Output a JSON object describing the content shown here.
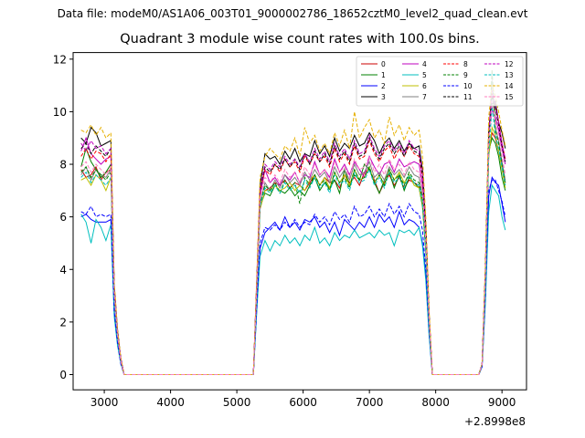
{
  "header": {
    "file_label": "Data file: modeM0/AS1A06_003T01_9000002786_18652cztM0_level2_quad_clean.evt"
  },
  "chart_data": {
    "type": "line",
    "title": "Quadrant 3 module wise count rates with 100.0s bins.",
    "xlabel": "",
    "ylabel": "",
    "x_offset_label": "+2.8998e8",
    "xlim": [
      2530,
      9370
    ],
    "ylim": [
      -0.58,
      12.25
    ],
    "xticks": [
      3000,
      4000,
      5000,
      6000,
      7000,
      8000,
      9000
    ],
    "yticks": [
      0,
      2,
      4,
      6,
      8,
      10,
      12
    ],
    "grid": false,
    "legend_placement": "top-right",
    "x": [
      2650,
      2725,
      2800,
      2875,
      2950,
      3025,
      3100,
      3150,
      3200,
      3250,
      3300,
      3350,
      3450,
      4000,
      4500,
      5000,
      5100,
      5200,
      5250,
      5300,
      5350,
      5425,
      5500,
      5575,
      5650,
      5725,
      5800,
      5875,
      5950,
      6025,
      6100,
      6175,
      6250,
      6325,
      6400,
      6475,
      6550,
      6625,
      6700,
      6775,
      6850,
      6925,
      7000,
      7075,
      7150,
      7225,
      7300,
      7375,
      7450,
      7525,
      7600,
      7675,
      7750,
      7800,
      7850,
      7900,
      7950,
      8000,
      8100,
      8500,
      8650,
      8700,
      8750,
      8800,
      8850,
      8900,
      8950,
      9000,
      9050
    ],
    "series": [
      {
        "name": "0",
        "color": "#cc0000",
        "dash": false,
        "values": [
          7.8,
          7.5,
          7.6,
          7.9,
          7.4,
          7.7,
          7.8,
          3.0,
          1.5,
          0.6,
          0,
          0,
          0,
          0,
          0,
          0,
          0,
          0,
          0,
          3.2,
          6.3,
          7.0,
          7.1,
          7.3,
          7.2,
          7.4,
          7.1,
          7.3,
          7.2,
          7.0,
          7.3,
          7.6,
          7.2,
          7.5,
          7.3,
          7.4,
          7.1,
          7.6,
          7.3,
          7.5,
          7.2,
          7.7,
          7.8,
          7.4,
          6.9,
          7.3,
          7.6,
          7.2,
          7.5,
          7.1,
          7.4,
          7.3,
          7.2,
          6.5,
          4.8,
          2.0,
          0,
          0,
          0,
          0,
          0,
          0.4,
          3.5,
          8.4,
          9.2,
          9.0,
          8.5,
          8.0,
          7.3
        ]
      },
      {
        "name": "1",
        "color": "#008000",
        "dash": false,
        "values": [
          7.9,
          8.6,
          8.1,
          7.8,
          7.5,
          7.7,
          8.0,
          3.0,
          1.4,
          0.5,
          0,
          0,
          0,
          0,
          0,
          0,
          0,
          0,
          0,
          3.2,
          6.4,
          6.9,
          6.8,
          7.2,
          7.0,
          6.9,
          7.1,
          6.8,
          7.0,
          6.8,
          7.2,
          7.5,
          7.0,
          7.3,
          7.1,
          7.4,
          6.9,
          7.8,
          7.2,
          7.6,
          7.4,
          8.0,
          7.8,
          7.3,
          6.9,
          7.4,
          7.7,
          7.1,
          7.6,
          7.0,
          7.5,
          7.3,
          7.1,
          6.4,
          4.7,
          2.0,
          0,
          0,
          0,
          0,
          0,
          0.4,
          3.5,
          8.5,
          9.0,
          8.8,
          8.3,
          7.5,
          7.0
        ]
      },
      {
        "name": "2",
        "color": "#0000ff",
        "dash": false,
        "values": [
          6.0,
          6.1,
          5.9,
          5.8,
          5.8,
          5.8,
          5.9,
          2.3,
          1.2,
          0.5,
          0,
          0,
          0,
          0,
          0,
          0,
          0,
          0,
          0,
          2.5,
          4.8,
          5.4,
          5.6,
          5.8,
          5.5,
          6.0,
          5.6,
          5.8,
          5.5,
          5.9,
          5.8,
          6.0,
          5.6,
          5.8,
          5.4,
          5.8,
          5.3,
          5.9,
          5.7,
          5.5,
          5.8,
          5.6,
          6.0,
          5.6,
          6.1,
          5.8,
          6.0,
          5.6,
          6.2,
          5.7,
          5.9,
          5.8,
          5.6,
          5.0,
          3.8,
          1.6,
          0,
          0,
          0,
          0,
          0,
          0.3,
          2.9,
          6.8,
          7.5,
          7.3,
          7.2,
          6.5,
          5.8
        ]
      },
      {
        "name": "3",
        "color": "#000000",
        "dash": false,
        "values": [
          9.0,
          8.8,
          9.4,
          9.2,
          8.7,
          8.8,
          8.9,
          3.4,
          1.7,
          0.6,
          0,
          0,
          0,
          0,
          0,
          0,
          0,
          0,
          0,
          3.6,
          7.2,
          8.4,
          8.2,
          8.3,
          8.0,
          8.5,
          8.2,
          8.6,
          8.1,
          8.4,
          8.3,
          8.9,
          8.4,
          8.7,
          8.3,
          9.0,
          8.5,
          8.8,
          8.6,
          9.1,
          8.7,
          8.8,
          9.2,
          8.9,
          8.4,
          8.8,
          9.0,
          8.6,
          8.9,
          8.5,
          8.8,
          8.6,
          8.7,
          7.8,
          5.7,
          2.3,
          0,
          0,
          0,
          0,
          0,
          0.4,
          4.0,
          9.3,
          10.3,
          10.4,
          9.6,
          9.2,
          8.6
        ]
      },
      {
        "name": "4",
        "color": "#bf00bf",
        "dash": false,
        "values": [
          8.5,
          9.0,
          8.4,
          8.2,
          8.0,
          8.2,
          8.3,
          3.2,
          1.6,
          0.5,
          0,
          0,
          0,
          0,
          0,
          0,
          0,
          0,
          0,
          3.4,
          6.8,
          7.8,
          7.3,
          7.5,
          7.2,
          7.6,
          7.4,
          7.7,
          7.3,
          7.6,
          7.5,
          8.1,
          7.6,
          7.8,
          7.5,
          8.2,
          7.7,
          8.0,
          7.6,
          8.1,
          7.8,
          7.5,
          8.3,
          7.9,
          7.6,
          8.0,
          8.1,
          7.7,
          8.2,
          7.9,
          8.0,
          8.1,
          8.0,
          7.2,
          5.3,
          2.2,
          0,
          0,
          0,
          0,
          0,
          0.4,
          3.8,
          9.0,
          10.1,
          9.8,
          9.3,
          8.6,
          8.0
        ]
      },
      {
        "name": "5",
        "color": "#00bfbf",
        "dash": false,
        "values": [
          6.1,
          5.8,
          5.0,
          5.9,
          5.6,
          5.1,
          5.7,
          2.2,
          1.1,
          0.4,
          0,
          0,
          0,
          0,
          0,
          0,
          0,
          0,
          0,
          2.4,
          4.5,
          5.1,
          4.7,
          5.1,
          4.9,
          5.3,
          5.0,
          5.2,
          4.9,
          5.3,
          5.1,
          5.6,
          5.0,
          5.2,
          4.9,
          5.4,
          5.1,
          5.3,
          5.2,
          5.5,
          5.2,
          5.3,
          5.4,
          5.2,
          5.5,
          5.3,
          5.4,
          4.9,
          5.5,
          5.4,
          5.5,
          5.3,
          5.6,
          4.9,
          3.6,
          1.5,
          0,
          0,
          0,
          0,
          0,
          0.3,
          2.7,
          6.2,
          7.2,
          7.0,
          6.8,
          6.0,
          5.5
        ]
      },
      {
        "name": "6",
        "color": "#bfbf00",
        "dash": false,
        "values": [
          7.4,
          7.5,
          7.2,
          7.6,
          7.4,
          7.0,
          7.5,
          2.9,
          1.4,
          0.5,
          0,
          0,
          0,
          0,
          0,
          0,
          0,
          0,
          0,
          3.1,
          6.3,
          7.0,
          7.0,
          7.2,
          7.0,
          7.1,
          7.3,
          7.0,
          7.2,
          7.0,
          7.4,
          7.6,
          7.2,
          7.5,
          7.1,
          7.7,
          7.3,
          7.6,
          7.2,
          7.8,
          7.4,
          7.5,
          7.9,
          7.3,
          7.6,
          7.2,
          7.8,
          7.4,
          7.7,
          7.3,
          7.6,
          7.2,
          7.1,
          6.5,
          4.8,
          2.0,
          0,
          0,
          0,
          0,
          0,
          0.4,
          3.5,
          8.3,
          9.4,
          9.1,
          8.5,
          7.8,
          7.1
        ]
      },
      {
        "name": "7",
        "color": "#808080",
        "dash": false,
        "values": [
          7.6,
          7.9,
          7.4,
          7.8,
          7.6,
          7.5,
          7.8,
          3.0,
          1.5,
          0.5,
          0,
          0,
          0,
          0,
          0,
          0,
          0,
          0,
          0,
          3.2,
          6.5,
          7.3,
          7.0,
          7.4,
          7.1,
          7.6,
          7.3,
          7.5,
          7.2,
          7.7,
          7.4,
          7.8,
          7.5,
          7.7,
          7.3,
          7.9,
          7.5,
          7.8,
          7.4,
          8.0,
          7.6,
          7.7,
          8.1,
          7.5,
          7.7,
          7.4,
          7.9,
          7.6,
          7.8,
          7.5,
          7.9,
          7.6,
          7.5,
          6.8,
          5.0,
          2.1,
          0,
          0,
          0,
          0,
          0,
          0.4,
          3.6,
          8.8,
          11.2,
          9.4,
          8.9,
          8.1,
          7.4
        ]
      },
      {
        "name": "8",
        "color": "#ff0000",
        "dash": true,
        "values": [
          8.3,
          8.6,
          8.2,
          8.5,
          8.4,
          8.1,
          8.4,
          3.2,
          1.6,
          0.6,
          0,
          0,
          0,
          0,
          0,
          0,
          0,
          0,
          0,
          3.5,
          7.0,
          7.8,
          7.6,
          8.0,
          7.7,
          8.2,
          7.9,
          8.1,
          7.7,
          8.3,
          8.0,
          8.4,
          8.1,
          8.3,
          7.9,
          8.6,
          8.1,
          8.4,
          8.0,
          8.7,
          8.2,
          8.3,
          8.9,
          8.4,
          8.1,
          8.5,
          8.7,
          8.2,
          8.6,
          8.3,
          8.7,
          8.4,
          8.3,
          7.5,
          5.5,
          2.3,
          0,
          0,
          0,
          0,
          0,
          0.4,
          3.9,
          9.2,
          10.7,
          10.2,
          9.6,
          8.8,
          8.2
        ]
      },
      {
        "name": "9",
        "color": "#008000",
        "dash": true,
        "values": [
          7.7,
          7.9,
          7.5,
          7.8,
          7.6,
          7.4,
          7.7,
          3.0,
          1.5,
          0.5,
          0,
          0,
          0,
          0,
          0,
          0,
          0,
          0,
          0,
          3.2,
          6.5,
          7.2,
          7.0,
          7.3,
          6.9,
          7.4,
          7.1,
          7.3,
          6.5,
          7.5,
          7.2,
          7.6,
          7.2,
          7.4,
          7.0,
          7.7,
          7.3,
          7.5,
          7.1,
          7.8,
          7.4,
          7.5,
          7.9,
          7.3,
          7.6,
          7.2,
          7.8,
          7.4,
          7.6,
          7.2,
          7.7,
          7.4,
          7.3,
          6.7,
          4.9,
          2.0,
          0,
          0,
          0,
          0,
          0,
          0.4,
          3.6,
          8.6,
          11.6,
          9.3,
          8.8,
          8.0,
          7.3
        ]
      },
      {
        "name": "10",
        "color": "#0000ff",
        "dash": true,
        "values": [
          6.2,
          6.1,
          6.4,
          6.0,
          6.1,
          6.0,
          6.1,
          2.4,
          1.2,
          0.4,
          0,
          0,
          0,
          0,
          0,
          0,
          0,
          0,
          0,
          2.6,
          5.0,
          5.6,
          5.5,
          5.7,
          5.5,
          5.8,
          5.6,
          5.9,
          5.6,
          5.8,
          5.7,
          6.1,
          5.8,
          6.0,
          5.7,
          6.2,
          5.9,
          6.1,
          5.8,
          6.4,
          6.0,
          6.1,
          6.4,
          6.0,
          6.3,
          6.0,
          6.5,
          6.1,
          6.4,
          6.0,
          6.5,
          6.2,
          6.1,
          5.5,
          4.0,
          1.7,
          0,
          0,
          0,
          0,
          0,
          0.3,
          3.0,
          7.0,
          7.4,
          7.4,
          7.0,
          6.6,
          6.0
        ]
      },
      {
        "name": "11",
        "color": "#000000",
        "dash": true,
        "values": [
          8.6,
          8.8,
          8.4,
          8.7,
          8.5,
          8.3,
          8.6,
          3.3,
          1.6,
          0.6,
          0,
          0,
          0,
          0,
          0,
          0,
          0,
          0,
          0,
          3.5,
          7.0,
          7.9,
          7.7,
          8.0,
          7.8,
          8.2,
          7.9,
          8.2,
          7.8,
          8.4,
          8.0,
          8.5,
          8.1,
          8.4,
          8.0,
          8.7,
          8.2,
          8.5,
          8.1,
          8.8,
          8.3,
          8.4,
          9.0,
          8.5,
          8.2,
          8.6,
          8.8,
          8.4,
          8.7,
          8.3,
          8.8,
          8.5,
          8.4,
          7.6,
          5.6,
          2.3,
          0,
          0,
          0,
          0,
          0,
          0.4,
          3.9,
          9.2,
          10.6,
          10.1,
          9.5,
          8.7,
          8.1
        ]
      },
      {
        "name": "12",
        "color": "#bf00bf",
        "dash": true,
        "values": [
          8.8,
          8.5,
          8.9,
          8.6,
          8.7,
          8.4,
          8.6,
          3.3,
          1.6,
          0.6,
          0,
          0,
          0,
          0,
          0,
          0,
          0,
          0,
          0,
          3.5,
          7.1,
          8.0,
          7.8,
          8.1,
          7.9,
          8.3,
          8.0,
          8.2,
          7.9,
          8.4,
          8.1,
          8.6,
          8.2,
          8.5,
          8.1,
          8.8,
          8.3,
          8.6,
          8.2,
          8.9,
          8.4,
          8.5,
          9.1,
          8.6,
          8.3,
          8.7,
          8.9,
          8.5,
          8.8,
          8.4,
          8.9,
          8.6,
          8.5,
          7.7,
          5.6,
          2.3,
          0,
          0,
          0,
          0,
          0,
          0.4,
          3.9,
          9.3,
          10.8,
          10.2,
          9.6,
          8.8,
          8.2
        ]
      },
      {
        "name": "13",
        "color": "#00bfbf",
        "dash": true,
        "values": [
          7.5,
          7.7,
          7.3,
          7.6,
          7.4,
          7.2,
          7.5,
          2.9,
          1.4,
          0.5,
          0,
          0,
          0,
          0,
          0,
          0,
          0,
          0,
          0,
          3.1,
          6.4,
          7.1,
          6.9,
          7.2,
          6.9,
          7.3,
          7.0,
          7.2,
          6.9,
          7.4,
          7.1,
          7.5,
          7.1,
          7.3,
          6.9,
          7.6,
          7.2,
          7.4,
          7.0,
          7.7,
          7.3,
          7.4,
          7.8,
          7.2,
          7.5,
          7.1,
          7.7,
          7.3,
          7.5,
          7.1,
          7.6,
          7.3,
          7.2,
          6.6,
          4.8,
          2.0,
          0,
          0,
          0,
          0,
          0,
          0.4,
          3.5,
          8.4,
          10.2,
          9.1,
          8.6,
          7.9,
          7.2
        ]
      },
      {
        "name": "14",
        "color": "#e6b000",
        "dash": true,
        "values": [
          9.3,
          9.2,
          9.5,
          9.1,
          9.4,
          9.0,
          9.2,
          3.5,
          1.7,
          0.6,
          0,
          0,
          0,
          0,
          0,
          0,
          0,
          0,
          0,
          3.7,
          7.5,
          8.3,
          8.6,
          8.4,
          8.2,
          8.7,
          8.5,
          9.0,
          8.3,
          9.4,
          8.8,
          9.1,
          8.5,
          8.8,
          8.4,
          9.2,
          8.7,
          9.3,
          8.6,
          10.0,
          9.0,
          9.4,
          9.7,
          9.0,
          9.3,
          8.8,
          9.8,
          9.1,
          9.5,
          8.9,
          9.4,
          9.1,
          9.3,
          8.3,
          6.0,
          2.5,
          0,
          0,
          0,
          0,
          0,
          0.4,
          4.2,
          9.8,
          11.0,
          10.6,
          10.0,
          9.3,
          8.7
        ]
      },
      {
        "name": "15",
        "color": "#ff7fbf",
        "dash": true,
        "values": [
          7.9,
          8.1,
          7.7,
          8.0,
          7.8,
          7.6,
          7.9,
          3.1,
          1.5,
          0.5,
          0,
          0,
          0,
          0,
          0,
          0,
          0,
          0,
          0,
          3.3,
          6.7,
          7.5,
          7.3,
          7.6,
          7.3,
          7.8,
          7.5,
          7.7,
          7.3,
          7.9,
          7.6,
          8.0,
          7.6,
          7.8,
          7.4,
          8.1,
          7.7,
          7.9,
          7.5,
          8.2,
          7.8,
          7.9,
          8.3,
          7.7,
          8.0,
          7.6,
          8.2,
          7.8,
          8.0,
          7.6,
          8.1,
          7.8,
          7.7,
          7.0,
          5.1,
          2.1,
          0,
          0,
          0,
          0,
          0,
          0.4,
          3.7,
          8.8,
          10.4,
          9.6,
          9.1,
          8.3,
          7.6
        ]
      }
    ]
  }
}
